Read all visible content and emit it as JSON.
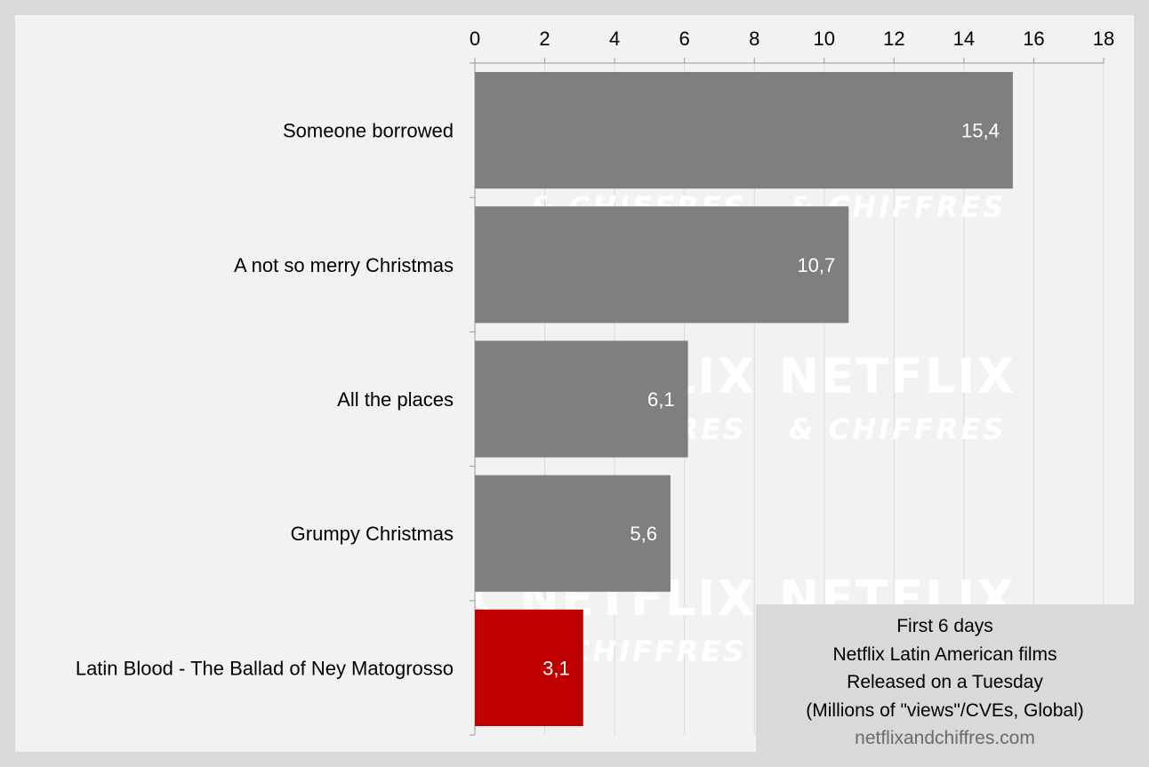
{
  "chart_data": {
    "type": "bar",
    "orientation": "horizontal",
    "categories": [
      "Someone borrowed",
      "A not so merry Christmas",
      "All the places",
      "Grumpy Christmas",
      "Latin Blood - The Ballad of Ney Matogrosso"
    ],
    "values": [
      15.4,
      10.7,
      6.1,
      5.6,
      3.1
    ],
    "value_labels": [
      "15,4",
      "10,7",
      "6,1",
      "5,6",
      "3,1"
    ],
    "bar_colors": [
      "#7f7f7f",
      "#7f7f7f",
      "#7f7f7f",
      "#7f7f7f",
      "#c00000"
    ],
    "xlim": [
      0,
      18
    ],
    "x_ticks": [
      0,
      2,
      4,
      6,
      8,
      10,
      12,
      14,
      16,
      18
    ],
    "x_axis_position": "top",
    "grid": true,
    "grid_color": "#d9d9d9",
    "title": "",
    "xlabel": "",
    "ylabel": ""
  },
  "watermark": {
    "line1": "NETFLIX",
    "line2": "& CHIFFRES"
  },
  "info_box": {
    "line1": "First 6 days",
    "line2": "Netflix Latin American films",
    "line3": "Released on a Tuesday",
    "line4": "(Millions of \"views\"/CVEs, Global)",
    "site": "netflixandchiffres.com"
  },
  "colors": {
    "background": "#d9d9d9",
    "plot_background": "#f2f2f2",
    "bar_default": "#7f7f7f",
    "bar_highlight": "#c00000"
  }
}
